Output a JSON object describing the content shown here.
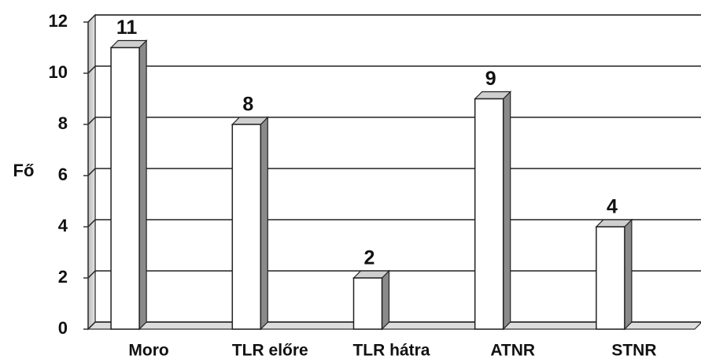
{
  "chart_data": {
    "type": "bar",
    "categories": [
      "Moro",
      "TLR előre",
      "TLR hátra",
      "ATNR",
      "STNR"
    ],
    "values": [
      11,
      8,
      2,
      9,
      4
    ],
    "color": "#ffffff",
    "ylabel": "Fő",
    "ylim": [
      0,
      12
    ],
    "yticks": [
      0,
      2,
      4,
      6,
      8,
      10,
      12
    ],
    "grid": true
  }
}
